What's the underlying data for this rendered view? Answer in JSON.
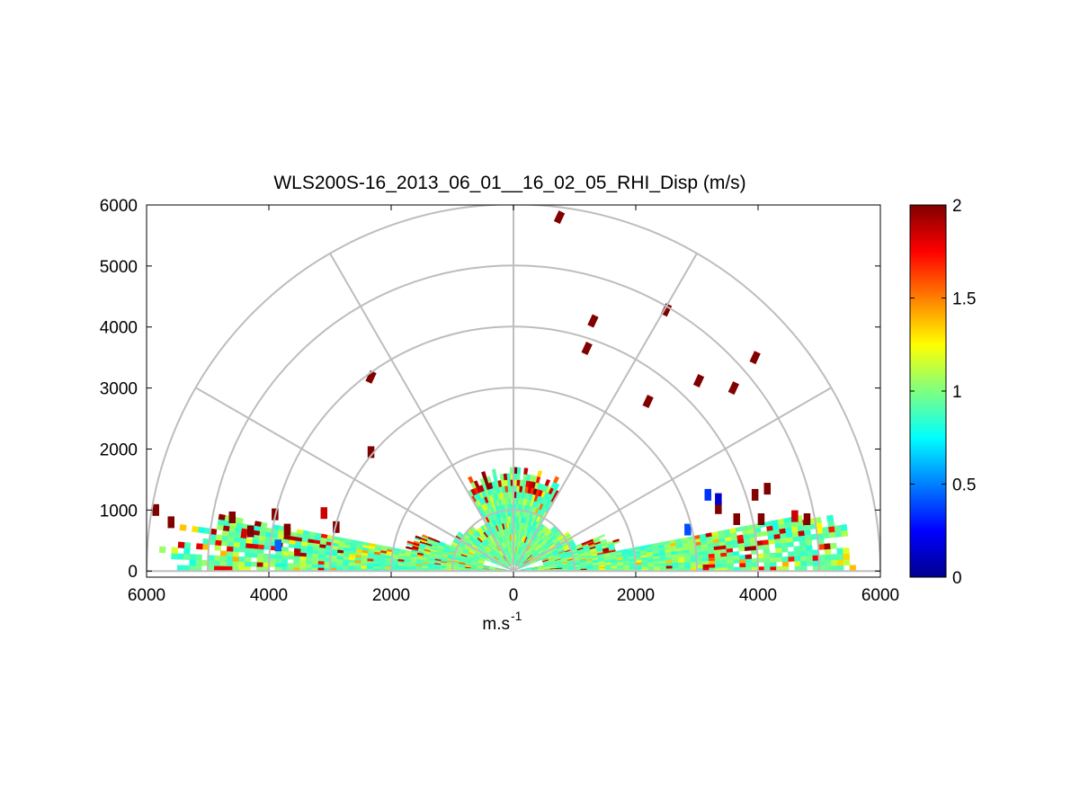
{
  "chart_data": {
    "type": "heatmap",
    "title": "WLS200S-16_2013_06_01__16_02_05_RHI_Disp (m/s)",
    "xlabel": "m.s",
    "xlabel_superscript": "-1",
    "ylabel": "",
    "xlim": [
      -6000,
      6000
    ],
    "ylim": [
      -100,
      6000
    ],
    "x_ticks": [
      -6000,
      -4000,
      -2000,
      0,
      2000,
      4000,
      6000
    ],
    "x_tick_labels": [
      "6000",
      "4000",
      "2000",
      "0",
      "2000",
      "4000",
      "6000"
    ],
    "y_ticks": [
      0,
      1000,
      2000,
      3000,
      4000,
      5000,
      6000
    ],
    "y_tick_labels": [
      "0",
      "1000",
      "2000",
      "3000",
      "4000",
      "5000",
      "6000"
    ],
    "polar_grid": {
      "range_rings_m": [
        1000,
        2000,
        3000,
        4000,
        5000,
        6000
      ],
      "spokes_deg": [
        0,
        30,
        60,
        90,
        120,
        150,
        180
      ]
    },
    "colorbar": {
      "min": 0,
      "max": 2,
      "ticks": [
        0,
        0.5,
        1,
        1.5,
        2
      ],
      "tick_labels": [
        "0",
        "0.5",
        "1",
        "1.5",
        "2"
      ],
      "colormap": "jet"
    },
    "scan": {
      "elevation_deg_min": 0,
      "elevation_deg_max": 11,
      "max_range_m": 6000,
      "range_gate_m": 100,
      "typical_value": 1.0,
      "inner_band_elevation_deg": [
        11,
        22
      ],
      "inner_band_range_m": [
        500,
        1900
      ]
    },
    "high_value_cells": [
      {
        "x": 750,
        "y": 5800,
        "value": 2.0
      },
      {
        "x": 1300,
        "y": 4100,
        "value": 2.0
      },
      {
        "x": 1200,
        "y": 3650,
        "value": 2.0
      },
      {
        "x": 2500,
        "y": 4280,
        "value": 2.0
      },
      {
        "x": 3950,
        "y": 3500,
        "value": 2.0
      },
      {
        "x": 3030,
        "y": 3120,
        "value": 2.0
      },
      {
        "x": 3600,
        "y": 3000,
        "value": 2.0
      },
      {
        "x": 2200,
        "y": 2780,
        "value": 2.0
      },
      {
        "x": -2330,
        "y": 3180,
        "value": 2.0
      },
      {
        "x": -2330,
        "y": 1950,
        "value": 2.0
      },
      {
        "x": -5850,
        "y": 1000,
        "value": 2.0
      },
      {
        "x": -5600,
        "y": 800,
        "value": 2.0
      },
      {
        "x": -4600,
        "y": 880,
        "value": 2.0
      },
      {
        "x": -4300,
        "y": 650,
        "value": 2.0
      },
      {
        "x": -3900,
        "y": 930,
        "value": 2.0
      },
      {
        "x": -3700,
        "y": 680,
        "value": 2.0
      },
      {
        "x": -3100,
        "y": 950,
        "value": 1.85
      },
      {
        "x": -2900,
        "y": 720,
        "value": 2.0
      },
      {
        "x": 3350,
        "y": 1030,
        "value": 2.0
      },
      {
        "x": 3650,
        "y": 850,
        "value": 2.0
      },
      {
        "x": 3950,
        "y": 1250,
        "value": 2.0
      },
      {
        "x": 4150,
        "y": 1350,
        "value": 2.0
      },
      {
        "x": 4050,
        "y": 850,
        "value": 2.0
      },
      {
        "x": 4800,
        "y": 850,
        "value": 2.0
      },
      {
        "x": 4600,
        "y": 900,
        "value": 1.85
      }
    ],
    "low_value_cells": [
      {
        "x": 3350,
        "y": 1180,
        "value": 0.15
      },
      {
        "x": 3180,
        "y": 1250,
        "value": 0.35
      },
      {
        "x": 2850,
        "y": 680,
        "value": 0.4
      },
      {
        "x": -3850,
        "y": 420,
        "value": 0.45
      }
    ]
  }
}
